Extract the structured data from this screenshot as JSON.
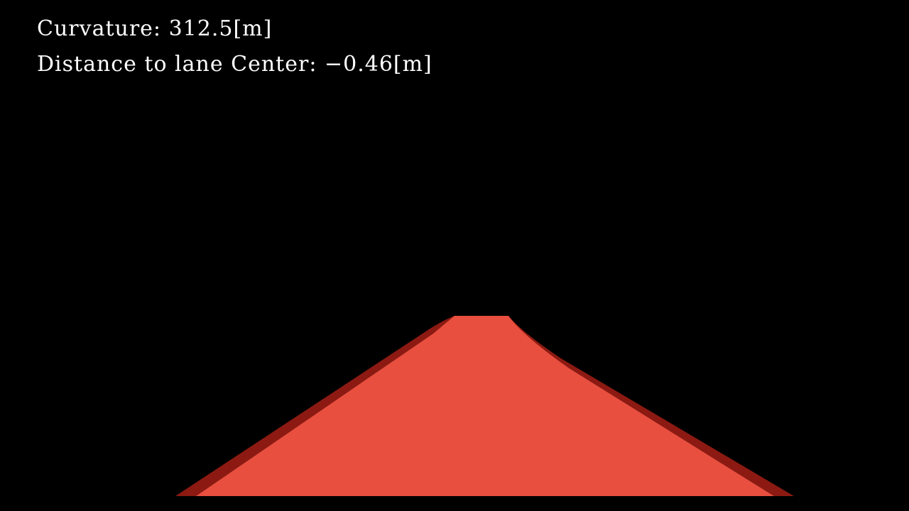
{
  "overlay": {
    "curvature_label": "Curvature: 312.5[m]",
    "distance_label": "Distance to lane Center: −0.46[m]"
  },
  "lane_overlay": {
    "fill_color": "#e84f3f",
    "edge_color": "#8c1a12",
    "background_color": "#000000"
  }
}
